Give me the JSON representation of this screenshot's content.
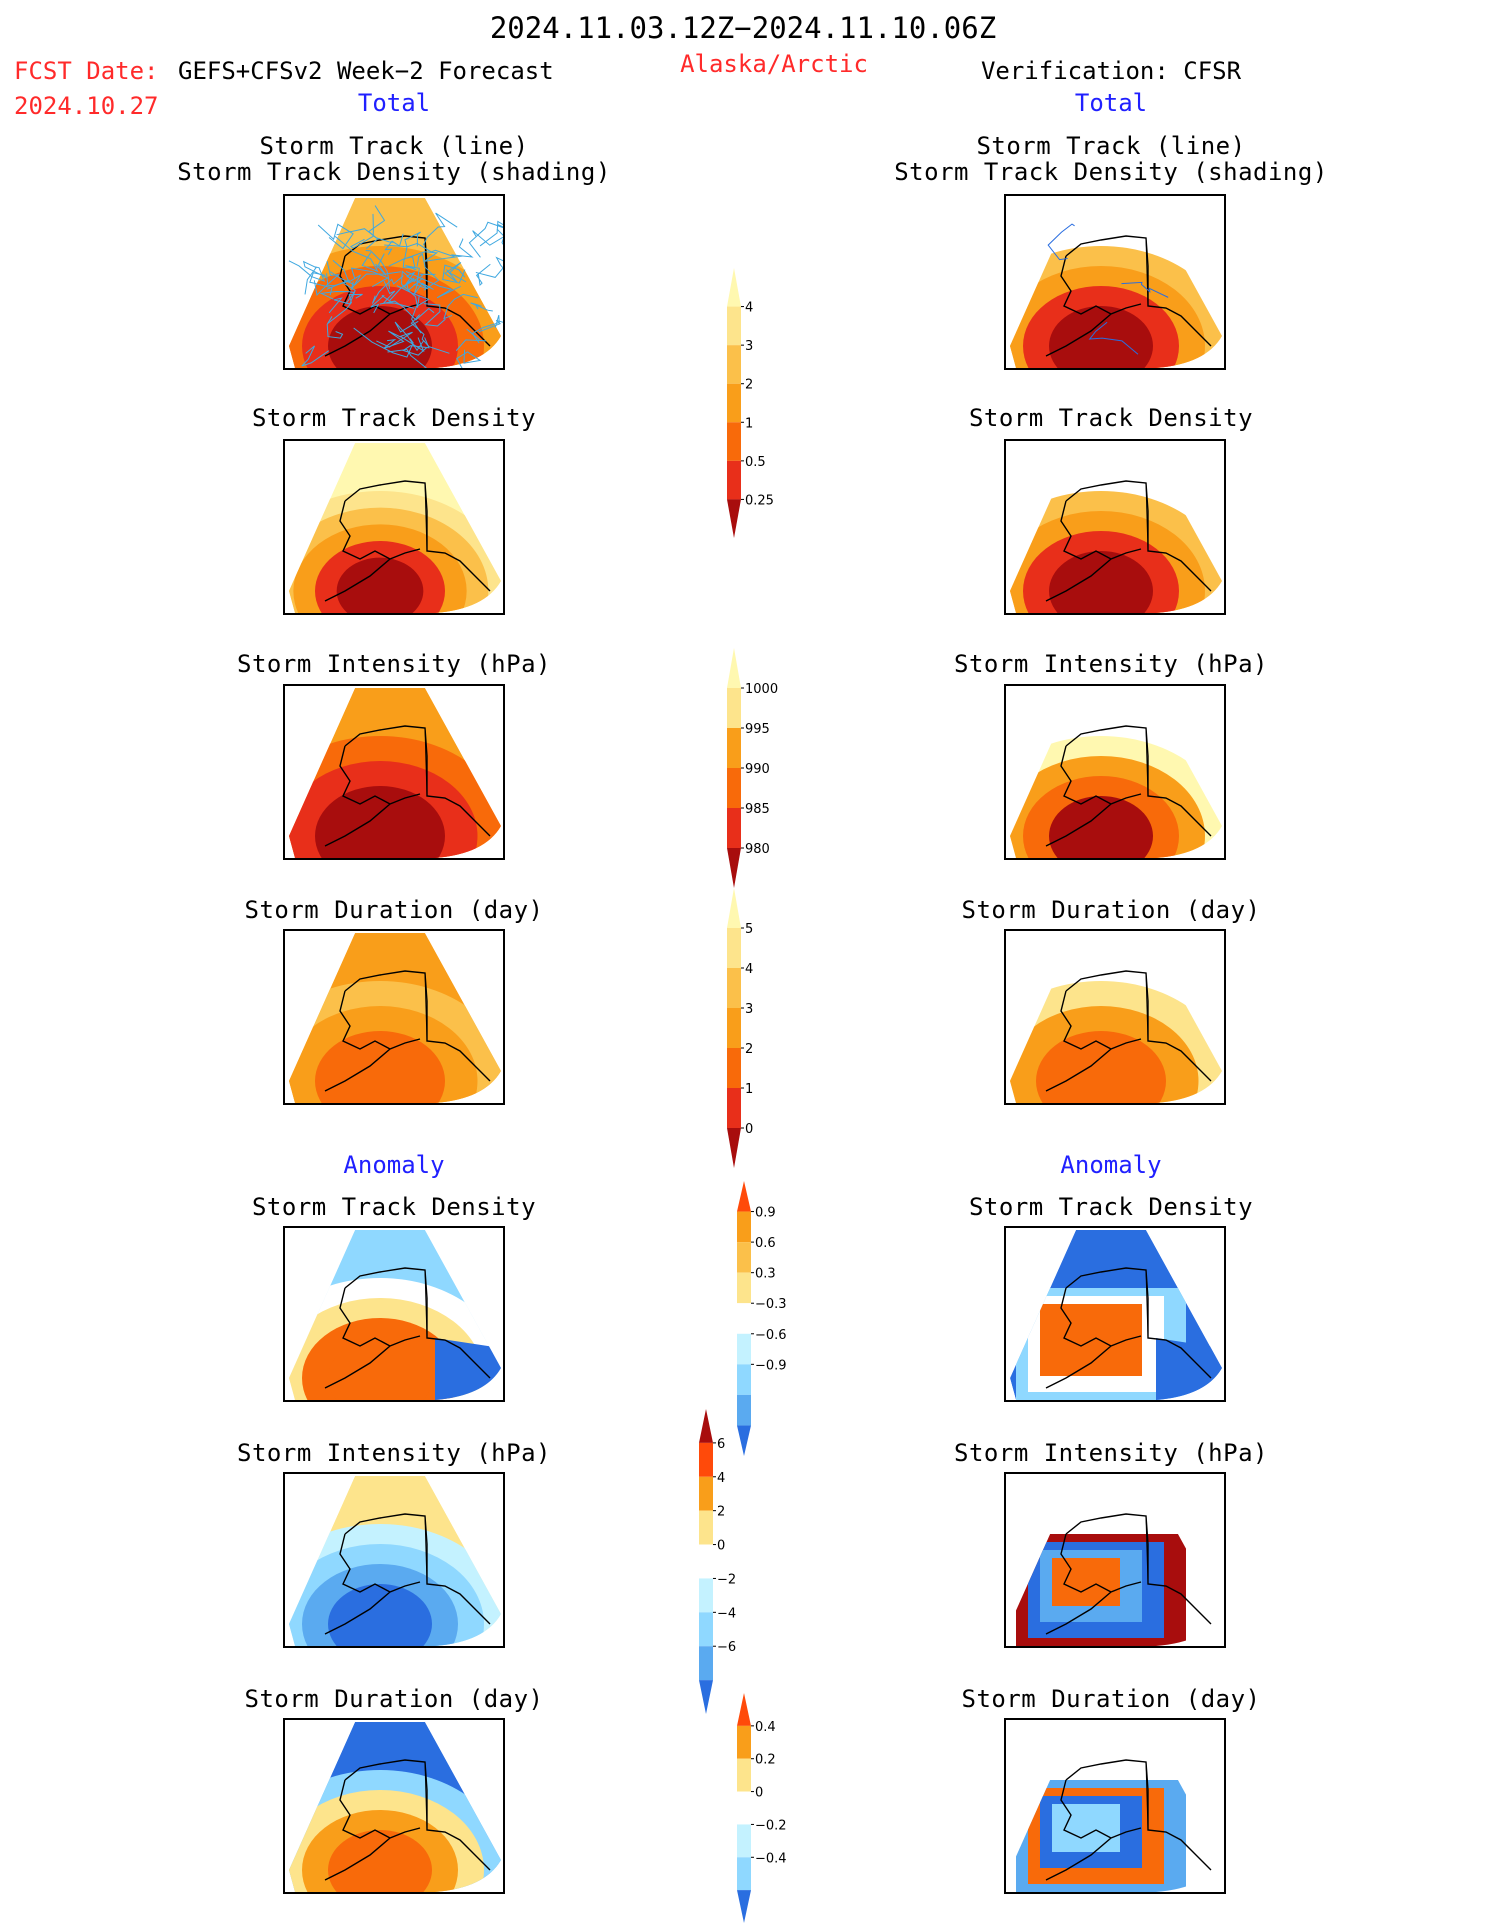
{
  "header": {
    "title": "2024.11.03.12Z−2024.11.10.06Z",
    "fcst_label": "FCST Date:",
    "fcst_model": "GEFS+CFSv2 Week−2 Forecast",
    "fcst_date": "2024.10.27",
    "region": "Alaska/Arctic",
    "verification": "Verification: CFSR"
  },
  "sections": {
    "total": "Total",
    "anomaly": "Anomaly"
  },
  "panel_titles": {
    "storm_track_line": "Storm Track (line)",
    "storm_track_density_shading": "Storm Track Density (shading)",
    "storm_track_density": "Storm Track Density",
    "storm_intensity": "Storm Intensity (hPa)",
    "storm_duration": "Storm Duration (day)"
  },
  "colorbars": {
    "track_density": {
      "ticks": [
        "0.25",
        "0.5",
        "1",
        "2",
        "3",
        "4"
      ],
      "colors": [
        "#fff8b0",
        "#fde48c",
        "#fbc04a",
        "#f99e1a",
        "#f86a0a",
        "#e82f1a",
        "#a80d0d"
      ]
    },
    "intensity": {
      "ticks": [
        "1000",
        "995",
        "990",
        "985",
        "980"
      ],
      "colors": [
        "#fff8b0",
        "#fde48c",
        "#f99e1a",
        "#f86a0a",
        "#e82f1a",
        "#a80d0d"
      ]
    },
    "duration": {
      "ticks": [
        "0",
        "1",
        "2",
        "3",
        "4",
        "5"
      ],
      "colors": [
        "#fff8b0",
        "#fde48c",
        "#fbc04a",
        "#f99e1a",
        "#f86a0a",
        "#e82f1a",
        "#a80d0d"
      ]
    },
    "anom_density": {
      "ticks": [
        "0.9",
        "0.6",
        "0.3",
        "−0.3",
        "−0.6",
        "−0.9"
      ],
      "colors": [
        "#ff4a0a",
        "#f99e1a",
        "#fbc04a",
        "#fde48c",
        "#ffffff",
        "#c4f2ff",
        "#8fd8ff",
        "#5aaaf0",
        "#2a6ee0"
      ]
    },
    "anom_intensity": {
      "ticks": [
        "6",
        "4",
        "2",
        "0",
        "−2",
        "−4",
        "−6"
      ],
      "colors": [
        "#a80d0d",
        "#ff4a0a",
        "#f99e1a",
        "#fde48c",
        "#ffffff",
        "#c4f2ff",
        "#8fd8ff",
        "#5aaaf0",
        "#2a6ee0"
      ]
    },
    "anom_duration": {
      "ticks": [
        "0.4",
        "0.2",
        "0",
        "−0.2",
        "−0.4"
      ],
      "colors": [
        "#ff4a0a",
        "#f99e1a",
        "#fde48c",
        "#ffffff",
        "#c4f2ff",
        "#8fd8ff",
        "#2a6ee0"
      ]
    }
  },
  "chart_data": [
    {
      "type": "heatmap",
      "column": "GEFS+CFSv2",
      "section": "Total",
      "title": "Storm Track (line) / Storm Track Density (shading)"
    },
    {
      "type": "heatmap",
      "column": "CFSR",
      "section": "Total",
      "title": "Storm Track (line) / Storm Track Density (shading)"
    },
    {
      "type": "heatmap",
      "column": "GEFS+CFSv2",
      "section": "Total",
      "title": "Storm Track Density"
    },
    {
      "type": "heatmap",
      "column": "CFSR",
      "section": "Total",
      "title": "Storm Track Density"
    },
    {
      "type": "heatmap",
      "column": "GEFS+CFSv2",
      "section": "Total",
      "title": "Storm Intensity (hPa)"
    },
    {
      "type": "heatmap",
      "column": "CFSR",
      "section": "Total",
      "title": "Storm Intensity (hPa)"
    },
    {
      "type": "heatmap",
      "column": "GEFS+CFSv2",
      "section": "Total",
      "title": "Storm Duration (day)"
    },
    {
      "type": "heatmap",
      "column": "CFSR",
      "section": "Total",
      "title": "Storm Duration (day)"
    },
    {
      "type": "heatmap",
      "column": "GEFS+CFSv2",
      "section": "Anomaly",
      "title": "Storm Track Density"
    },
    {
      "type": "heatmap",
      "column": "CFSR",
      "section": "Anomaly",
      "title": "Storm Track Density"
    },
    {
      "type": "heatmap",
      "column": "GEFS+CFSv2",
      "section": "Anomaly",
      "title": "Storm Intensity (hPa)"
    },
    {
      "type": "heatmap",
      "column": "CFSR",
      "section": "Anomaly",
      "title": "Storm Intensity (hPa)"
    },
    {
      "type": "heatmap",
      "column": "GEFS+CFSv2",
      "section": "Anomaly",
      "title": "Storm Duration (day)"
    },
    {
      "type": "heatmap",
      "column": "CFSR",
      "section": "Anomaly",
      "title": "Storm Duration (day)"
    }
  ]
}
